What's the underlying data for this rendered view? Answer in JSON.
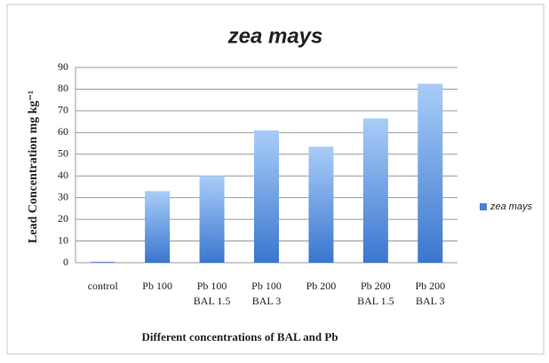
{
  "chart_data": {
    "type": "bar",
    "title": "zea mays",
    "x_label": "Different concentrations of BAL and Pb",
    "y_label": "Lead Concentration mg kg⁻¹",
    "categories": [
      "control",
      "Pb 100",
      "Pb 100\nBAL 1.5",
      "Pb 100\nBAL 3",
      "Pb 200",
      "Pb 200\nBAL 1.5",
      "Pb 200\nBAL 3"
    ],
    "series": [
      {
        "name": "zea mays",
        "color": "#4a82d4",
        "values": [
          0.5,
          33,
          40,
          61,
          53.5,
          66.5,
          82.5
        ]
      }
    ],
    "ylim": [
      0,
      90
    ],
    "yticks": [
      0,
      10,
      20,
      30,
      40,
      50,
      60,
      70,
      80,
      90
    ],
    "grid": true,
    "legend": "right"
  }
}
